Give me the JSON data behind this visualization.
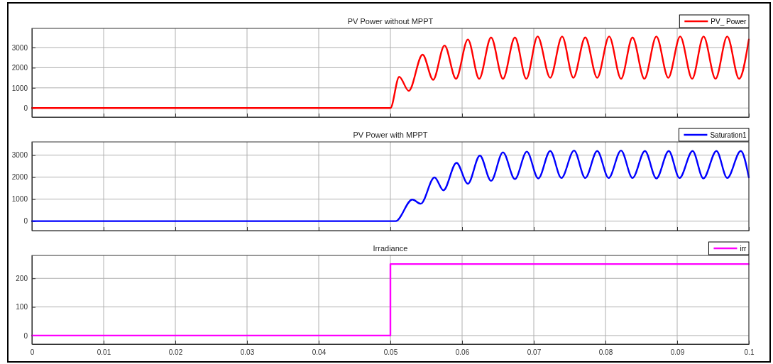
{
  "chart_data": [
    {
      "type": "line",
      "title": "PV Power without MPPT",
      "xlim": [
        0,
        0.1
      ],
      "xticks": [
        0,
        0.01,
        0.02,
        0.03,
        0.04,
        0.05,
        0.06,
        0.07,
        0.08,
        0.09,
        0.1
      ],
      "ylim": [
        -450,
        3950
      ],
      "yticks": [
        0,
        1000,
        2000,
        3000
      ],
      "grid": true,
      "legend": "top right",
      "tick_labels": "y",
      "series": [
        {
          "name": "PV_ Power",
          "color": "#ff0000",
          "x": [
            0,
            0.05,
            0.05123,
            0.05256,
            0.05449,
            0.05596,
            0.05755,
            0.05915,
            0.06081,
            0.06238,
            0.06404,
            0.0657,
            0.06737,
            0.06896,
            0.07053,
            0.07229,
            0.07395,
            0.07552,
            0.07718,
            0.07885,
            0.08051,
            0.08217,
            0.08377,
            0.08543,
            0.0871,
            0.08876,
            0.09042,
            0.09209,
            0.09368,
            0.09535,
            0.09698,
            0.09864,
            0.1
          ],
          "values": [
            0,
            0,
            1550,
            850,
            2650,
            1400,
            3100,
            1450,
            3400,
            1450,
            3500,
            1450,
            3500,
            1450,
            3550,
            1500,
            3550,
            1500,
            3500,
            1500,
            3550,
            1450,
            3500,
            1450,
            3550,
            1500,
            3550,
            1450,
            3550,
            1450,
            3550,
            1450,
            3400
          ]
        }
      ]
    },
    {
      "type": "line",
      "title": "PV Power with MPPT",
      "xlim": [
        0,
        0.1
      ],
      "xticks": [
        0,
        0.01,
        0.02,
        0.03,
        0.04,
        0.05,
        0.06,
        0.07,
        0.08,
        0.09,
        0.1
      ],
      "ylim": [
        -430,
        3600
      ],
      "yticks": [
        0,
        1000,
        2000,
        3000
      ],
      "grid": true,
      "legend": "top right",
      "tick_labels": "y",
      "series": [
        {
          "name": "Saturation1",
          "color": "#0000ff",
          "x": [
            0,
            0.05073,
            0.05306,
            0.05423,
            0.05615,
            0.05739,
            0.05922,
            0.06081,
            0.06248,
            0.06404,
            0.0657,
            0.06737,
            0.06903,
            0.07063,
            0.07229,
            0.07385,
            0.07562,
            0.07718,
            0.07885,
            0.08044,
            0.08217,
            0.08377,
            0.0855,
            0.0871,
            0.08883,
            0.09032,
            0.09215,
            0.09365,
            0.09548,
            0.09698,
            0.09887,
            0.1
          ],
          "values": [
            0,
            0,
            980,
            790,
            1990,
            1400,
            2650,
            1700,
            2980,
            1830,
            3130,
            1910,
            3160,
            1940,
            3190,
            1960,
            3210,
            1960,
            3190,
            1960,
            3210,
            1960,
            3190,
            1940,
            3190,
            1960,
            3190,
            1940,
            3190,
            1960,
            3190,
            1990
          ]
        }
      ]
    },
    {
      "type": "step",
      "title": "Irradiance",
      "xlim": [
        0,
        0.1
      ],
      "xticks": [
        0,
        0.01,
        0.02,
        0.03,
        0.04,
        0.05,
        0.06,
        0.07,
        0.08,
        0.09,
        0.1
      ],
      "ylim": [
        -30,
        280
      ],
      "yticks": [
        0,
        100,
        200
      ],
      "grid": true,
      "legend": "top right",
      "series": [
        {
          "name": "irr",
          "color": "#ff00ff",
          "x": [
            0,
            0.05,
            0.1
          ],
          "values": [
            0,
            250,
            250
          ]
        }
      ]
    }
  ]
}
